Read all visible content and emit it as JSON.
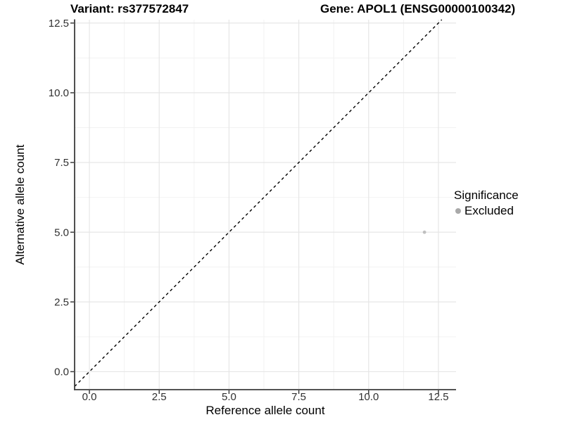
{
  "titles": {
    "left": "Variant: rs377572847",
    "right": "Gene: APOL1 (ENSG00000100342)"
  },
  "axes": {
    "x": {
      "label": "Reference allele count",
      "ticks": [
        "0.0",
        "2.5",
        "5.0",
        "7.5",
        "10.0",
        "12.5"
      ]
    },
    "y": {
      "label": "Alternative allele count",
      "ticks": [
        "0.0",
        "2.5",
        "5.0",
        "7.5",
        "10.0",
        "12.5"
      ]
    }
  },
  "legend": {
    "title": "Significance",
    "items": [
      {
        "label": "Excluded",
        "color": "#a9a9a9"
      }
    ]
  },
  "colors": {
    "background": "#ffffff",
    "grid_major": "#e6e6e6",
    "grid_minor": "#f2f2f2",
    "axis": "#3c3c3c",
    "tick_text": "#303030",
    "title_text": "#000000"
  },
  "chart_data": {
    "type": "scatter",
    "title": "Variant: rs377572847 | Gene: APOL1 (ENSG00000100342)",
    "xlabel": "Reference allele count",
    "ylabel": "Alternative allele count",
    "xlim": [
      -0.53,
      13.13
    ],
    "ylim": [
      -0.62,
      12.62
    ],
    "x_ticks": [
      0,
      2.5,
      5,
      7.5,
      10,
      12.5
    ],
    "y_ticks": [
      0,
      2.5,
      5,
      7.5,
      10,
      12.5
    ],
    "grid": "major+minor",
    "legend_position": "right",
    "series": [
      {
        "name": "Excluded",
        "color": "#bfbfbf",
        "points": [
          {
            "x": 12,
            "y": 5
          }
        ]
      }
    ],
    "reference_line": {
      "type": "identity",
      "slope": 1,
      "intercept": 0,
      "style": "dashed",
      "color": "#000000"
    }
  }
}
